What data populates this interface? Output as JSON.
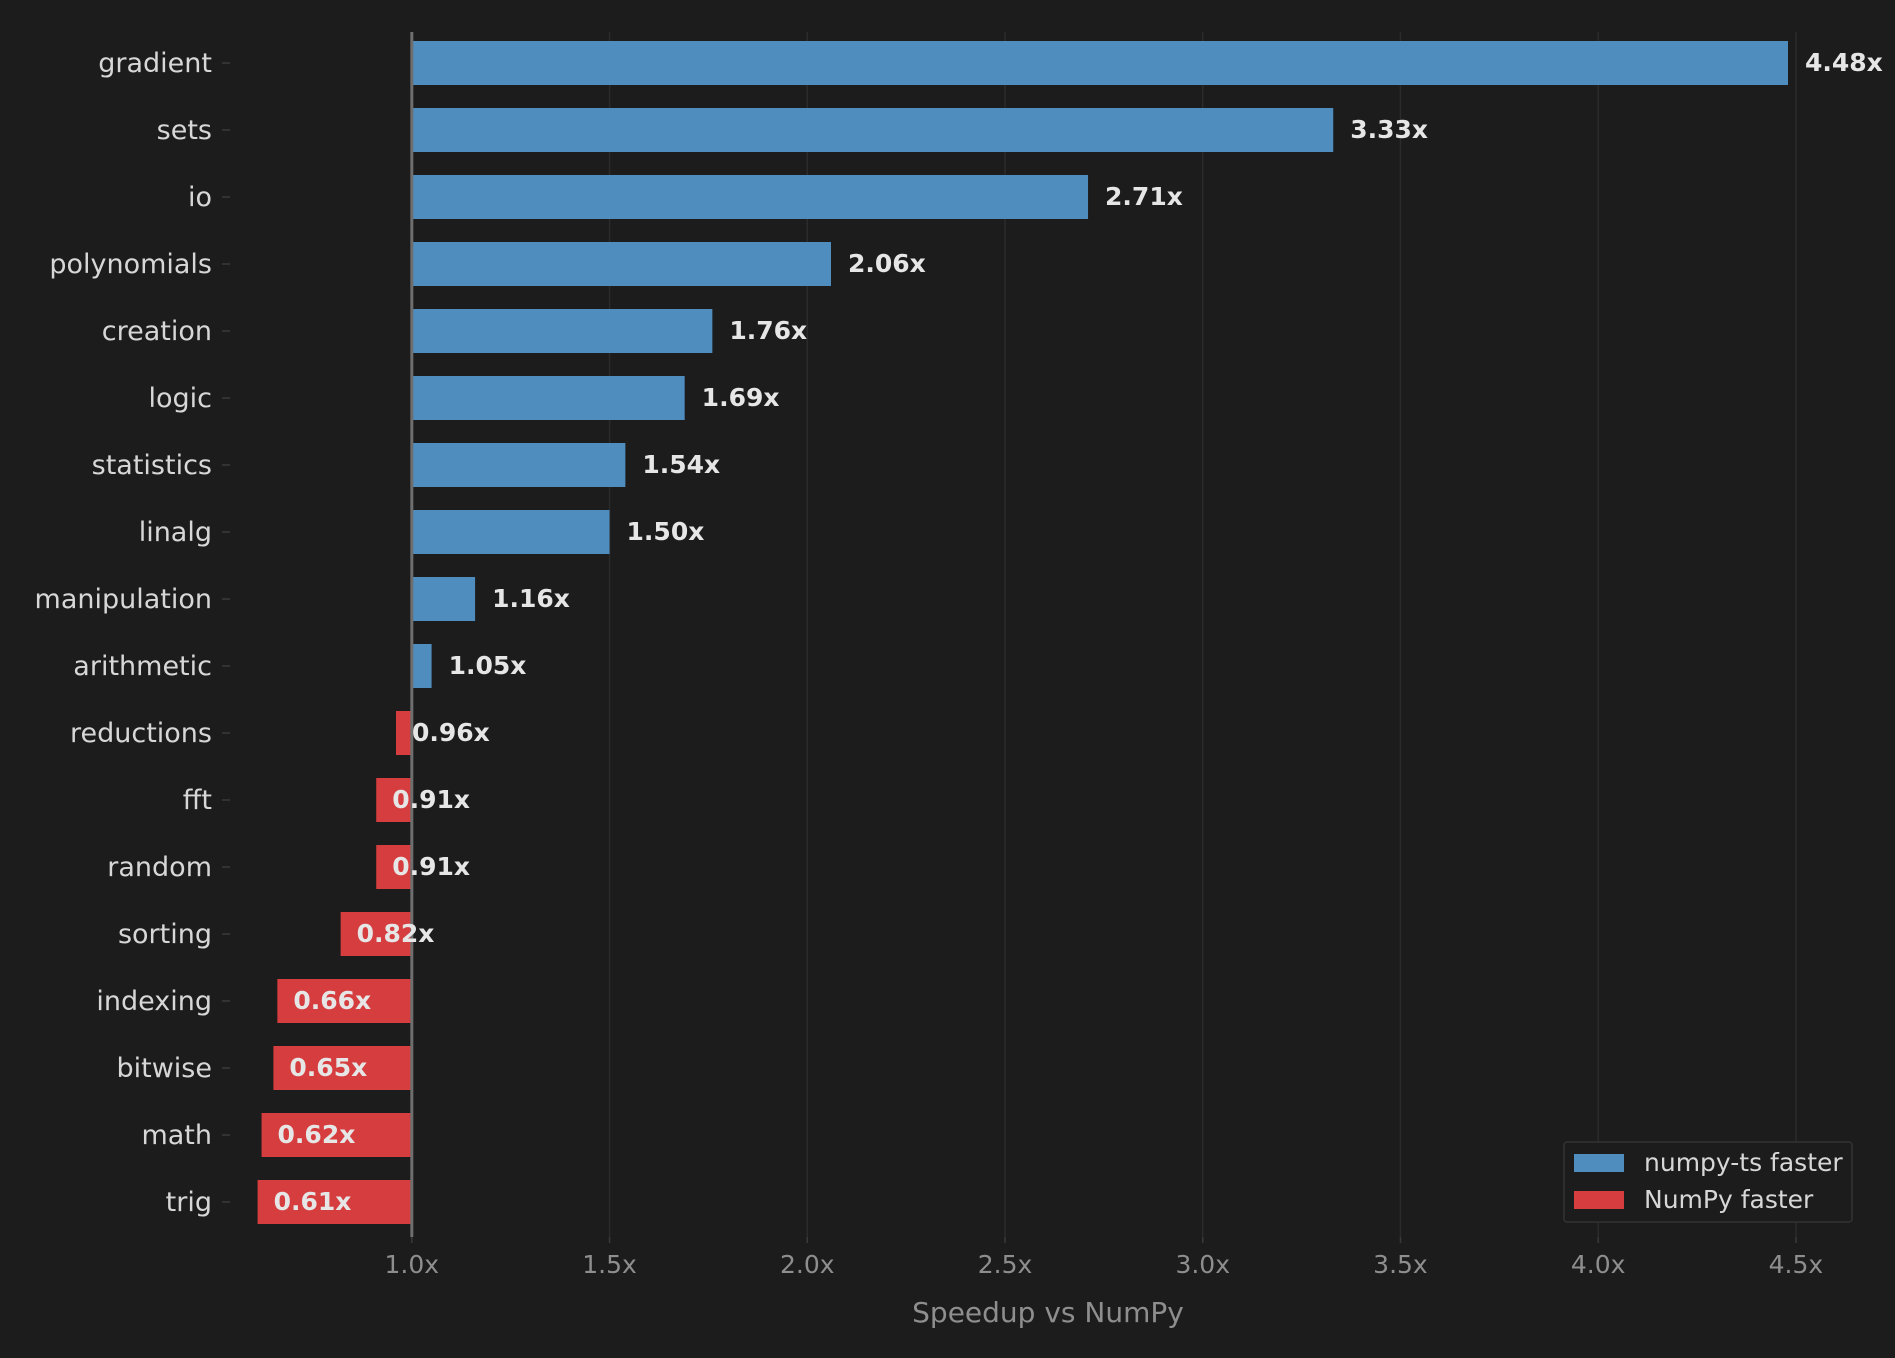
{
  "chart_data": {
    "type": "bar",
    "orientation": "horizontal",
    "baseline": 1.0,
    "categories": [
      "gradient",
      "sets",
      "io",
      "polynomials",
      "creation",
      "logic",
      "statistics",
      "linalg",
      "manipulation",
      "arithmetic",
      "reductions",
      "fft",
      "random",
      "sorting",
      "indexing",
      "bitwise",
      "math",
      "trig"
    ],
    "values": [
      4.48,
      3.33,
      2.71,
      2.06,
      1.76,
      1.69,
      1.54,
      1.5,
      1.16,
      1.05,
      0.96,
      0.91,
      0.91,
      0.82,
      0.66,
      0.65,
      0.62,
      0.61
    ],
    "value_labels": [
      "4.48x",
      "3.33x",
      "2.71x",
      "2.06x",
      "1.76x",
      "1.69x",
      "1.54x",
      "1.50x",
      "1.16x",
      "1.05x",
      "0.96x",
      "0.91x",
      "0.91x",
      "0.82x",
      "0.66x",
      "0.65x",
      "0.62x",
      "0.61x"
    ],
    "xlabel": "Speedup vs NumPy",
    "xlim": [
      0.52,
      4.7
    ],
    "xticks": [
      1.0,
      1.5,
      2.0,
      2.5,
      3.0,
      3.5,
      4.0,
      4.5
    ],
    "xtick_labels": [
      "1.0x",
      "1.5x",
      "2.0x",
      "2.5x",
      "3.0x",
      "3.5x",
      "4.0x",
      "4.5x"
    ],
    "grid": "vertical",
    "legend": {
      "position": "bottom-right",
      "entries": [
        {
          "label": "numpy-ts faster",
          "color": "#4f8dbf"
        },
        {
          "label": "NumPy faster",
          "color": "#d63d3f"
        }
      ]
    },
    "colors": {
      "faster": "#4f8dbf",
      "slower": "#d63d3f",
      "background": "#1c1c1c",
      "grid": "#2b2b2b",
      "baseline": "#6e6e6e"
    }
  }
}
